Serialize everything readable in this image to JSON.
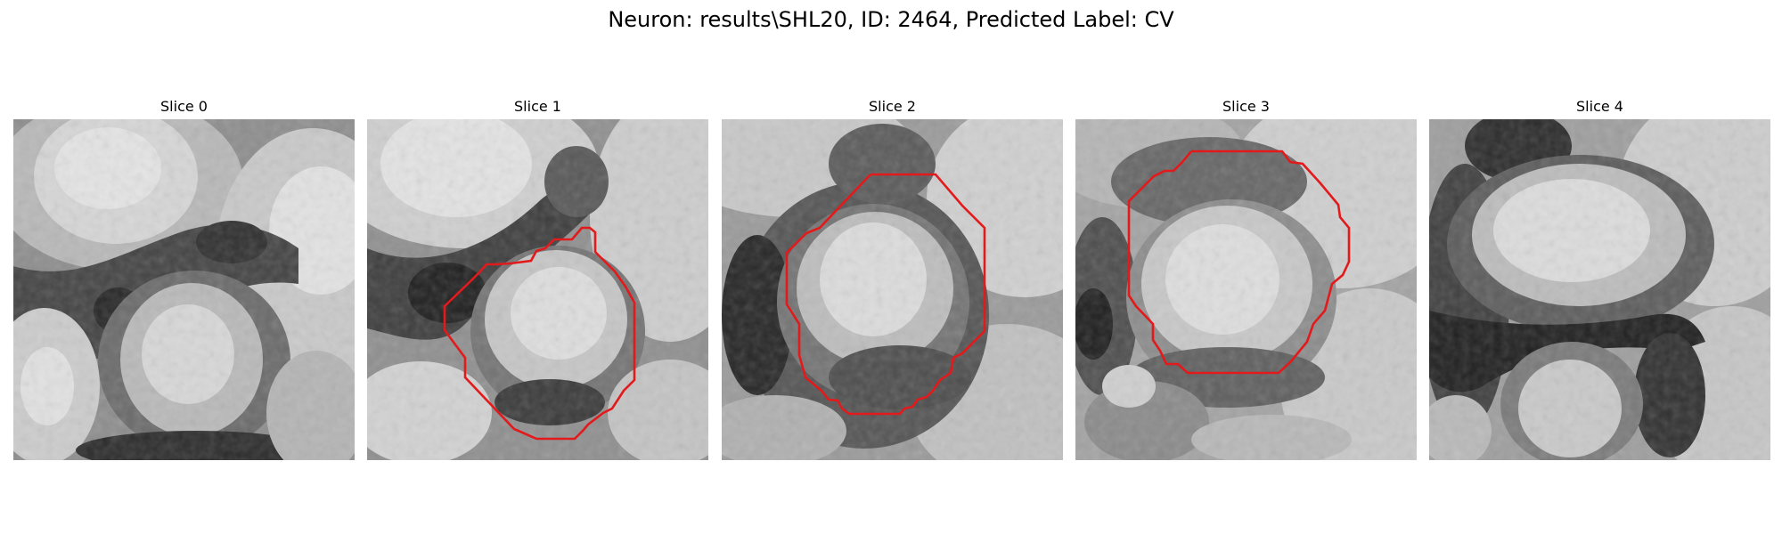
{
  "figure": {
    "title": "Neuron: results\\SHL20, ID: 2464, Predicted Label: CV"
  },
  "colors": {
    "background": "#ffffff",
    "contour": "#e31a1c",
    "colormap": "grayscale"
  },
  "panels": [
    {
      "title": "Slice 0",
      "contour": false
    },
    {
      "title": "Slice 1",
      "contour": true
    },
    {
      "title": "Slice 2",
      "contour": true
    },
    {
      "title": "Slice 3",
      "contour": true
    },
    {
      "title": "Slice 4",
      "contour": false
    }
  ]
}
